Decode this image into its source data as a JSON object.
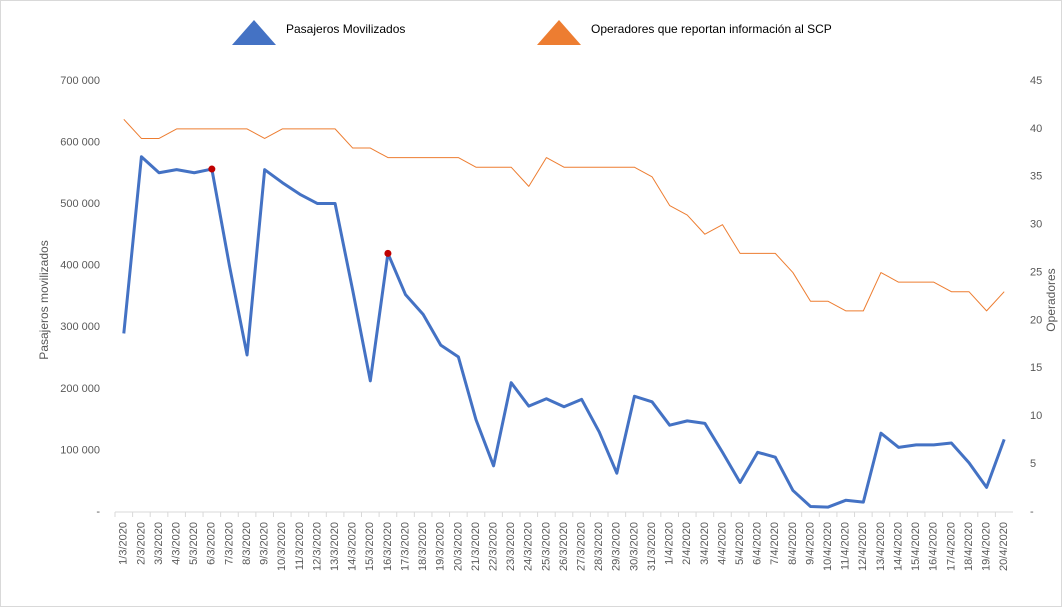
{
  "chart_data": {
    "type": "line",
    "y_label": "Pasajeros movilizados",
    "y2_label": "Operadores",
    "categories": [
      "1/3/2020",
      "2/3/2020",
      "3/3/2020",
      "4/3/2020",
      "5/3/2020",
      "6/3/2020",
      "7/3/2020",
      "8/3/2020",
      "9/3/2020",
      "10/3/2020",
      "11/3/2020",
      "12/3/2020",
      "13/3/2020",
      "14/3/2020",
      "15/3/2020",
      "16/3/2020",
      "17/3/2020",
      "18/3/2020",
      "19/3/2020",
      "20/3/2020",
      "21/3/2020",
      "22/3/2020",
      "23/3/2020",
      "24/3/2020",
      "25/3/2020",
      "26/3/2020",
      "27/3/2020",
      "28/3/2020",
      "29/3/2020",
      "30/3/2020",
      "31/3/2020",
      "1/4/2020",
      "2/4/2020",
      "3/4/2020",
      "4/4/2020",
      "5/4/2020",
      "6/4/2020",
      "7/4/2020",
      "8/4/2020",
      "9/4/2020",
      "10/4/2020",
      "11/4/2020",
      "12/4/2020",
      "13/4/2020",
      "14/4/2020",
      "15/4/2020",
      "16/4/2020",
      "17/4/2020",
      "18/4/2020",
      "19/4/2020",
      "20/4/2020"
    ],
    "series": [
      {
        "name": "Pasajeros Movilizados",
        "color": "#4472c4",
        "axis": "y",
        "values": [
          290000,
          577000,
          551000,
          556000,
          551000,
          557000,
          400000,
          255000,
          556000,
          535000,
          516000,
          501000,
          501000,
          360000,
          213000,
          420000,
          353000,
          321000,
          271000,
          252000,
          150000,
          75000,
          210000,
          172000,
          184000,
          171000,
          183000,
          130000,
          63000,
          188000,
          179000,
          141000,
          148000,
          144000,
          97000,
          48000,
          97000,
          89000,
          35000,
          9000,
          8000,
          19000,
          16000,
          128000,
          105000,
          109000,
          109000,
          112000,
          80000,
          40000,
          118000
        ]
      },
      {
        "name": "Operadores que reportan información al SCP",
        "color": "#ed7d31",
        "axis": "y2",
        "values": [
          41,
          39,
          39,
          40,
          40,
          40,
          40,
          40,
          39,
          40,
          40,
          40,
          40,
          38,
          38,
          37,
          37,
          37,
          37,
          37,
          36,
          36,
          36,
          34,
          37,
          36,
          36,
          36,
          36,
          36,
          35,
          32,
          31,
          29,
          30,
          27,
          27,
          27,
          25,
          22,
          22,
          21,
          21,
          25,
          24,
          24,
          24,
          23,
          23,
          21,
          23
        ]
      }
    ],
    "highlight_indices": [
      5,
      15
    ],
    "highlight_color": "#c00000",
    "ylim": [
      0,
      700000
    ],
    "yticks": [
      {
        "value": 0,
        "label": "-"
      },
      {
        "value": 100000,
        "label": "100 000"
      },
      {
        "value": 200000,
        "label": "200 000"
      },
      {
        "value": 300000,
        "label": "300 000"
      },
      {
        "value": 400000,
        "label": "400 000"
      },
      {
        "value": 500000,
        "label": "500 000"
      },
      {
        "value": 600000,
        "label": "600 000"
      },
      {
        "value": 700000,
        "label": "700 000"
      }
    ],
    "y2lim": [
      0,
      45
    ],
    "y2ticks": [
      {
        "value": 0,
        "label": "-"
      },
      5,
      10,
      15,
      20,
      25,
      30,
      35,
      40,
      45
    ],
    "grid": false
  }
}
